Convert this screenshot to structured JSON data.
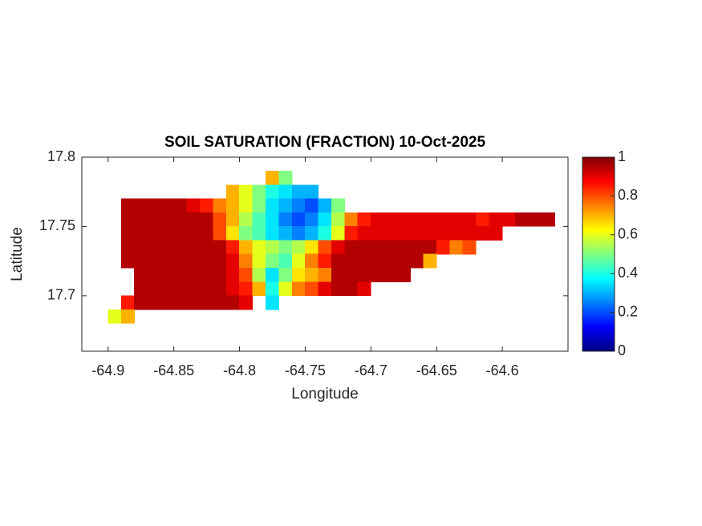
{
  "chart_data": {
    "type": "heatmap",
    "title": "SOIL SATURATION (FRACTION) 10-Oct-2025",
    "x_label": "Longitude",
    "y_label": "Latitude",
    "xlim": [
      -64.92,
      -64.55
    ],
    "ylim": [
      17.66,
      17.8
    ],
    "xticks": [
      -64.9,
      -64.85,
      -64.8,
      -64.75,
      -64.7,
      -64.65,
      -64.6
    ],
    "yticks": [
      17.7,
      17.75,
      17.8
    ],
    "clim": [
      0,
      1
    ],
    "cticks": [
      0,
      0.2,
      0.4,
      0.6,
      0.8,
      1
    ],
    "colormap": "jet",
    "x": [
      -64.905,
      -64.895,
      -64.885,
      -64.875,
      -64.865,
      -64.855,
      -64.845,
      -64.835,
      -64.825,
      -64.815,
      -64.805,
      -64.795,
      -64.785,
      -64.775,
      -64.765,
      -64.755,
      -64.745,
      -64.735,
      -64.725,
      -64.715,
      -64.705,
      -64.695,
      -64.685,
      -64.675,
      -64.665,
      -64.655,
      -64.645,
      -64.635,
      -64.625,
      -64.615,
      -64.605,
      -64.595,
      -64.585,
      -64.575,
      -64.565
    ],
    "y": [
      17.785,
      17.775,
      17.765,
      17.755,
      17.745,
      17.735,
      17.725,
      17.715,
      17.705,
      17.695,
      17.685
    ],
    "values": [
      [
        null,
        null,
        null,
        null,
        null,
        null,
        null,
        null,
        null,
        null,
        null,
        null,
        null,
        0.7,
        0.5,
        null,
        null,
        null,
        null,
        null,
        null,
        null,
        null,
        null,
        null,
        null,
        null,
        null,
        null,
        null,
        null,
        null,
        null,
        null,
        null
      ],
      [
        null,
        null,
        null,
        null,
        null,
        null,
        null,
        null,
        null,
        null,
        0.7,
        0.6,
        0.5,
        0.4,
        0.35,
        0.3,
        0.3,
        null,
        null,
        null,
        null,
        null,
        null,
        null,
        null,
        null,
        null,
        null,
        null,
        null,
        null,
        null,
        null,
        null,
        null
      ],
      [
        null,
        null,
        0.95,
        0.95,
        0.95,
        0.95,
        0.95,
        0.9,
        0.85,
        0.75,
        0.7,
        0.6,
        0.5,
        0.35,
        0.3,
        0.25,
        0.2,
        0.3,
        0.5,
        null,
        null,
        null,
        null,
        null,
        null,
        null,
        null,
        null,
        null,
        null,
        null,
        null,
        null,
        null,
        null
      ],
      [
        null,
        null,
        0.95,
        0.95,
        0.95,
        0.95,
        0.95,
        0.95,
        0.95,
        0.8,
        0.7,
        0.55,
        0.45,
        0.35,
        0.25,
        0.2,
        0.25,
        0.35,
        0.55,
        0.75,
        0.85,
        0.9,
        0.9,
        0.9,
        0.9,
        0.9,
        0.9,
        0.9,
        0.9,
        0.85,
        0.9,
        0.9,
        0.95,
        0.95,
        0.95
      ],
      [
        null,
        null,
        0.95,
        0.95,
        0.95,
        0.95,
        0.95,
        0.95,
        0.95,
        0.8,
        0.65,
        0.5,
        0.45,
        0.35,
        0.3,
        0.25,
        0.3,
        0.4,
        0.6,
        0.85,
        0.9,
        0.9,
        0.9,
        0.9,
        0.9,
        0.9,
        0.9,
        0.9,
        0.9,
        0.9,
        0.9,
        null,
        null,
        null,
        null
      ],
      [
        null,
        null,
        0.95,
        0.95,
        0.95,
        0.95,
        0.95,
        0.95,
        0.95,
        0.95,
        0.85,
        0.7,
        0.6,
        0.55,
        0.5,
        0.55,
        0.65,
        0.8,
        0.9,
        0.95,
        0.95,
        0.95,
        0.95,
        0.95,
        0.95,
        0.95,
        0.85,
        0.75,
        0.8,
        null,
        null,
        null,
        null,
        null,
        null
      ],
      [
        null,
        null,
        0.95,
        0.95,
        0.95,
        0.95,
        0.95,
        0.95,
        0.95,
        0.95,
        0.9,
        0.75,
        0.6,
        0.5,
        0.45,
        0.6,
        0.75,
        0.85,
        0.95,
        0.95,
        0.95,
        0.95,
        0.95,
        0.95,
        0.95,
        0.7,
        null,
        null,
        null,
        null,
        null,
        null,
        null,
        null,
        null
      ],
      [
        null,
        null,
        null,
        0.95,
        0.95,
        0.95,
        0.95,
        0.95,
        0.95,
        0.95,
        0.9,
        0.8,
        0.55,
        0.35,
        0.5,
        0.65,
        0.7,
        0.75,
        0.95,
        0.95,
        0.95,
        0.95,
        0.95,
        0.95,
        null,
        null,
        null,
        null,
        null,
        null,
        null,
        null,
        null,
        null,
        null
      ],
      [
        null,
        null,
        null,
        0.95,
        0.95,
        0.95,
        0.95,
        0.95,
        0.95,
        0.95,
        0.9,
        0.85,
        0.7,
        0.4,
        0.6,
        0.75,
        0.8,
        0.9,
        0.95,
        0.95,
        0.9,
        null,
        null,
        null,
        null,
        null,
        null,
        null,
        null,
        null,
        null,
        null,
        null,
        null,
        null
      ],
      [
        null,
        null,
        0.85,
        0.95,
        0.95,
        0.95,
        0.95,
        0.95,
        0.95,
        0.95,
        0.95,
        0.9,
        null,
        0.35,
        null,
        null,
        null,
        null,
        null,
        null,
        null,
        null,
        null,
        null,
        null,
        null,
        null,
        null,
        null,
        null,
        null,
        null,
        null,
        null,
        null
      ],
      [
        null,
        0.6,
        0.7,
        null,
        null,
        null,
        null,
        null,
        null,
        null,
        null,
        null,
        null,
        null,
        null,
        null,
        null,
        null,
        null,
        null,
        null,
        null,
        null,
        null,
        null,
        null,
        null,
        null,
        null,
        null,
        null,
        null,
        null,
        null,
        null
      ]
    ]
  }
}
